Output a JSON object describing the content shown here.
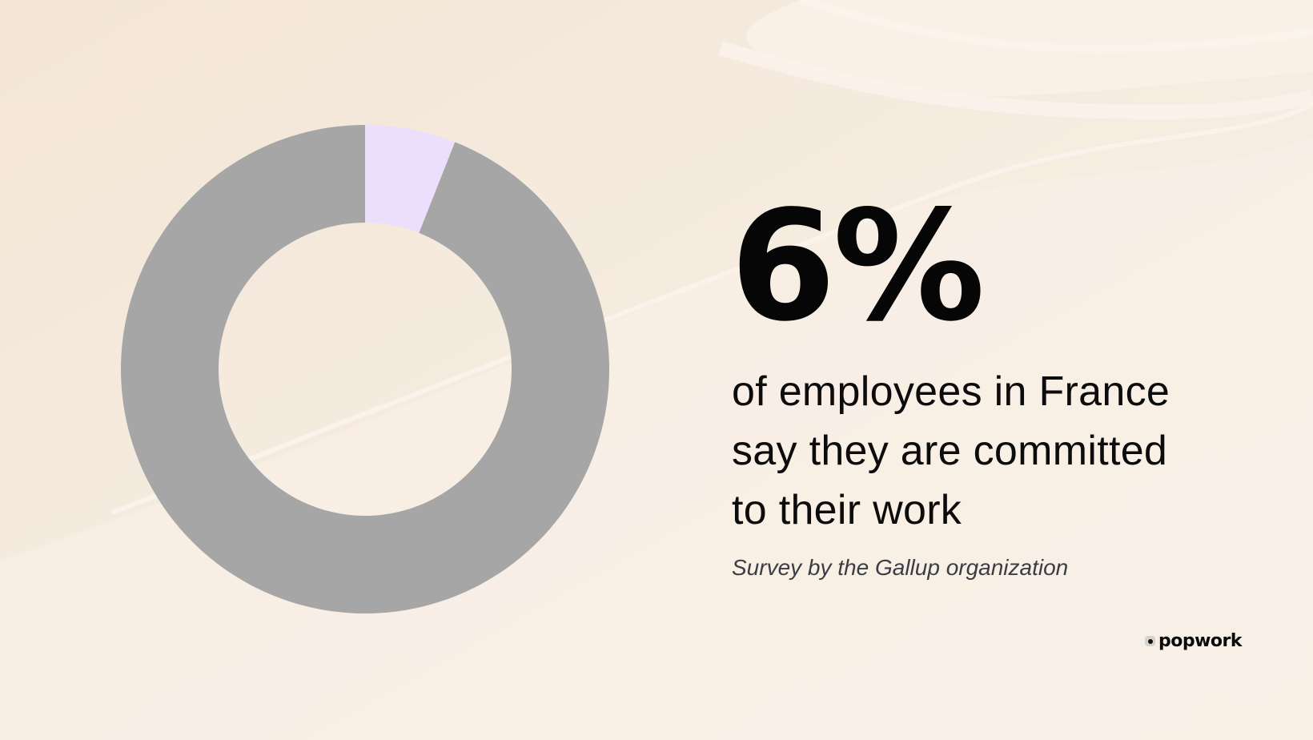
{
  "headline": {
    "value": "6%",
    "description_lines": [
      "of employees in France",
      "say they are committed",
      "to their work"
    ],
    "source": "Survey by the Gallup organization"
  },
  "brand": {
    "logo_text": "popwork"
  },
  "colors": {
    "background": "#f8efe5",
    "highlight_slice": "#ecdffb",
    "remainder_slice": "#a6a6a6",
    "text": "#060606",
    "source_text": "#3a3d44"
  },
  "chart_data": {
    "type": "pie",
    "variant": "donut",
    "start_angle": "12 o'clock, clockwise",
    "slices": [
      {
        "value": 6,
        "color": "#ecdffb"
      },
      {
        "value": 94,
        "color": "#a6a6a6"
      }
    ],
    "legend": "none",
    "data_labels": "none"
  }
}
